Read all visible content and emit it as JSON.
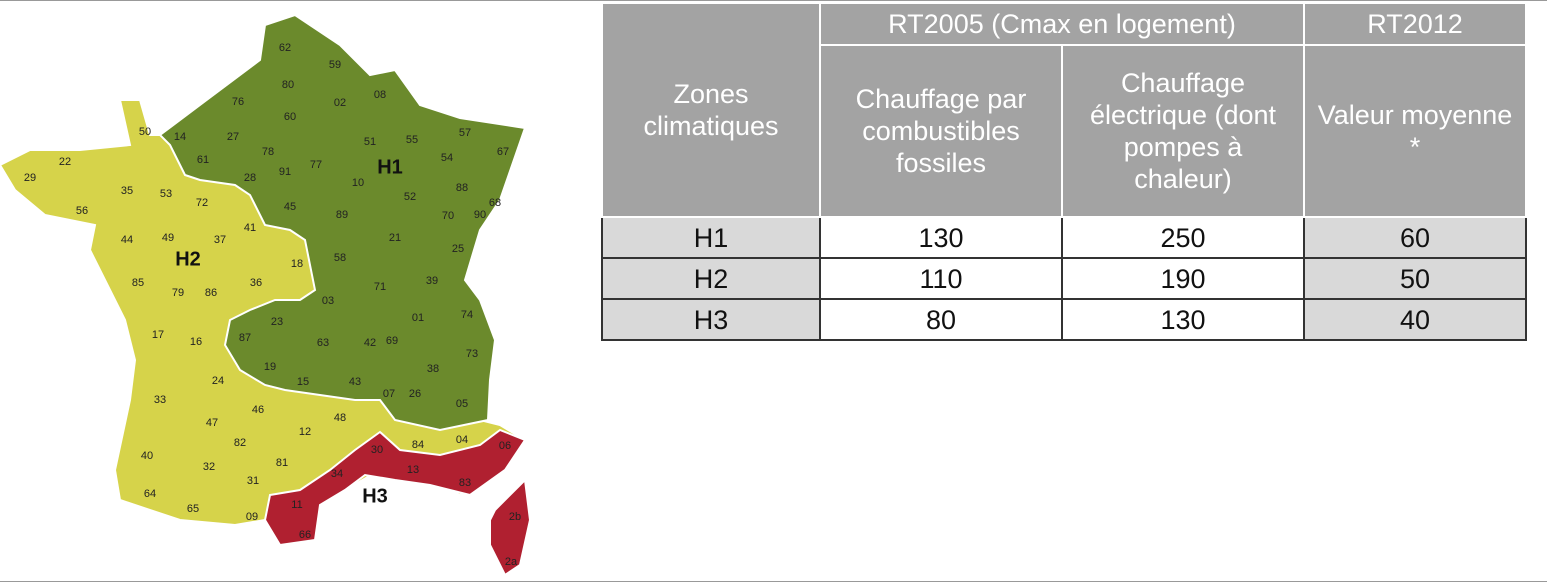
{
  "map": {
    "zone_labels": [
      "H1",
      "H2",
      "H3"
    ],
    "departments": {
      "h1": [
        "62",
        "59",
        "80",
        "02",
        "76",
        "60",
        "08",
        "14",
        "27",
        "61",
        "78",
        "91",
        "77",
        "28",
        "51",
        "55",
        "57",
        "67",
        "54",
        "88",
        "68",
        "90",
        "70",
        "52",
        "10",
        "89",
        "45",
        "21",
        "25",
        "58",
        "39",
        "71",
        "03",
        "01",
        "74",
        "23",
        "87",
        "63",
        "42",
        "69",
        "73",
        "19",
        "15",
        "43",
        "38",
        "05"
      ],
      "h2": [
        "50",
        "22",
        "29",
        "35",
        "56",
        "53",
        "72",
        "44",
        "49",
        "37",
        "41",
        "85",
        "79",
        "86",
        "36",
        "18",
        "17",
        "16",
        "24",
        "33",
        "47",
        "46",
        "82",
        "12",
        "48",
        "07",
        "26",
        "84",
        "04",
        "40",
        "32",
        "81",
        "31",
        "64",
        "65",
        "09"
      ],
      "h3": [
        "06",
        "30",
        "34",
        "13",
        "83",
        "11",
        "66",
        "2b",
        "2a"
      ]
    }
  },
  "table": {
    "header": {
      "group_rt2005": "RT2005 (Cmax en logement)",
      "group_rt2012": "RT2012",
      "zones": "Zones climatiques",
      "fossiles": "Chauffage par combustibles fossiles",
      "electrique": "Chauffage électrique (dont pompes à chaleur)",
      "moyenne": "Valeur moyenne *"
    },
    "rows": [
      [
        "H1",
        130,
        250,
        60
      ],
      [
        "H2",
        110,
        190,
        50
      ],
      [
        "H3",
        80,
        130,
        40
      ]
    ]
  }
}
